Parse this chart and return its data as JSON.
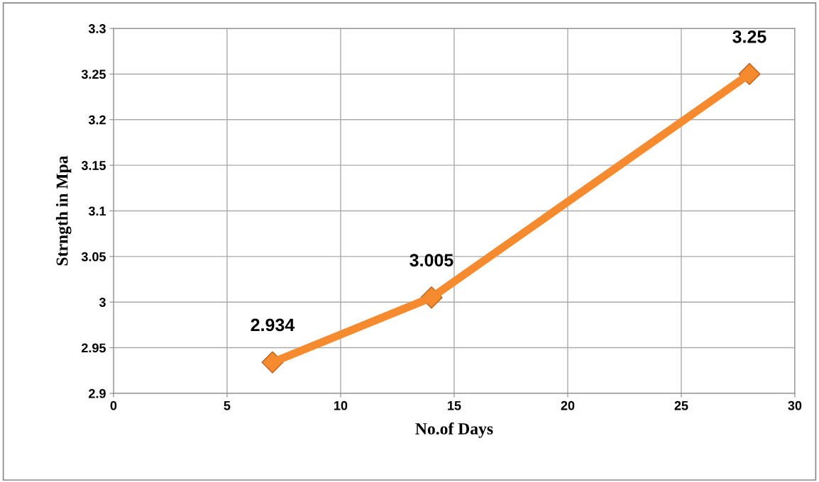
{
  "chart_data": {
    "type": "line",
    "xlabel": "No.of Days",
    "ylabel": "Strngth in Mpa",
    "x": [
      7,
      14,
      28
    ],
    "series": [
      {
        "color": "#f58a2e",
        "values": [
          2.934,
          3.005,
          3.25
        ]
      }
    ],
    "xlim": [
      0,
      30
    ],
    "xticks": [
      0,
      5,
      10,
      15,
      20,
      25,
      30
    ],
    "ylim": [
      2.9,
      3.3
    ],
    "yticks": [
      2.9,
      2.95,
      3,
      3.05,
      3.1,
      3.15,
      3.2,
      3.25,
      3.3
    ],
    "grid": true,
    "marker": "diamond",
    "line_style": "solid",
    "data_labels": true
  }
}
